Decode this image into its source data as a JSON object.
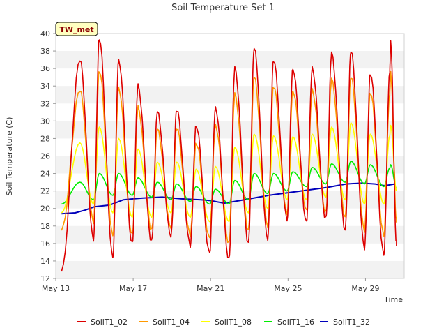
{
  "chart_data": {
    "type": "line",
    "title": "Soil Temperature Set 1",
    "xlabel": "Time",
    "ylabel": "Soil Temperature (C)",
    "badge": "TW_met",
    "x_range_days": [
      13,
      31
    ],
    "x_ticks": [
      {
        "day": 13,
        "label": "May 13"
      },
      {
        "day": 17,
        "label": "May 17"
      },
      {
        "day": 21,
        "label": "May 21"
      },
      {
        "day": 25,
        "label": "May 25"
      },
      {
        "day": 29,
        "label": "May 29"
      }
    ],
    "ylim": [
      12,
      40
    ],
    "y_ticks": [
      12,
      14,
      16,
      18,
      20,
      22,
      24,
      26,
      28,
      30,
      32,
      34,
      36,
      38,
      40
    ],
    "grid": "horizontal bands",
    "legend_position": "bottom",
    "time_start_day": 13.3,
    "peak_days": [
      14.3,
      15.3,
      16.3,
      17.3,
      18.3,
      19.3,
      20.3,
      21.3,
      22.3,
      23.3,
      24.3,
      25.3,
      26.3,
      27.3,
      28.3,
      29.3,
      30.3
    ],
    "series": [
      {
        "name": "SoilT1_02",
        "color": "#dd0000",
        "max": [
          37,
          39.5,
          37,
          34,
          31,
          31.3,
          29.5,
          31.5,
          36,
          38.3,
          37,
          36,
          36,
          37.7,
          38,
          35.5,
          35.5,
          39
        ],
        "min": [
          12.8,
          16.5,
          14.5,
          16,
          16.2,
          16.8,
          15.8,
          15,
          14.2,
          16,
          16.5,
          18.8,
          18.5,
          18.8,
          17.5,
          15.5,
          14.8,
          16
        ]
      },
      {
        "name": "SoilT1_04",
        "color": "#ff9900",
        "max": [
          33.5,
          35.8,
          33.8,
          31.5,
          29,
          29.2,
          27.5,
          29.5,
          33,
          35,
          34,
          33.5,
          33.5,
          34.7,
          35,
          33.3,
          33,
          35.5
        ],
        "min": [
          17.5,
          18.5,
          17,
          17,
          17.5,
          17.8,
          17,
          16.7,
          16,
          17.5,
          18,
          19.5,
          19.8,
          19.5,
          19,
          17.5,
          17,
          18.7
        ]
      },
      {
        "name": "SoilT1_08",
        "color": "#ffff00",
        "max": [
          27.5,
          29.3,
          28,
          26.8,
          25.3,
          25.3,
          24.5,
          24.8,
          27,
          28.5,
          28.3,
          28.2,
          28.5,
          29.3,
          29.8,
          28.5,
          28.3,
          29.5
        ],
        "min": [
          19.5,
          20.5,
          19.5,
          19,
          19,
          19.5,
          19,
          18.5,
          18.5,
          19.5,
          20,
          21,
          21,
          21.3,
          21,
          20.5,
          20.5,
          22
        ]
      },
      {
        "name": "SoilT1_16",
        "color": "#00ee00",
        "max": [
          23,
          24,
          24,
          23.5,
          23,
          22.8,
          22.5,
          22.2,
          23.2,
          24,
          24,
          24.2,
          24.7,
          25.1,
          25.4,
          25,
          24.6,
          25
        ],
        "min": [
          20.5,
          21,
          21.5,
          21.5,
          21.3,
          21,
          20.8,
          20.5,
          20.5,
          21,
          21.7,
          22,
          22.5,
          22.8,
          23,
          22.8,
          22.5,
          22.3
        ]
      },
      {
        "name": "SoilT1_32",
        "color": "#0000bb",
        "points": [
          [
            13.3,
            19.4
          ],
          [
            14,
            19.5
          ],
          [
            14.5,
            19.8
          ],
          [
            15,
            20.2
          ],
          [
            15.8,
            20.4
          ],
          [
            16.5,
            21
          ],
          [
            17,
            21.1
          ],
          [
            17.5,
            21.2
          ],
          [
            18.5,
            21.3
          ],
          [
            19.5,
            21.1
          ],
          [
            20.5,
            21.0
          ],
          [
            21,
            20.9
          ],
          [
            21.7,
            20.6
          ],
          [
            22.5,
            20.9
          ],
          [
            23,
            21.1
          ],
          [
            24,
            21.5
          ],
          [
            25,
            21.8
          ],
          [
            26,
            22.1
          ],
          [
            27,
            22.4
          ],
          [
            28,
            22.8
          ],
          [
            28.8,
            22.9
          ],
          [
            29.5,
            22.8
          ],
          [
            30,
            22.6
          ],
          [
            30.5,
            22.8
          ]
        ]
      }
    ]
  }
}
